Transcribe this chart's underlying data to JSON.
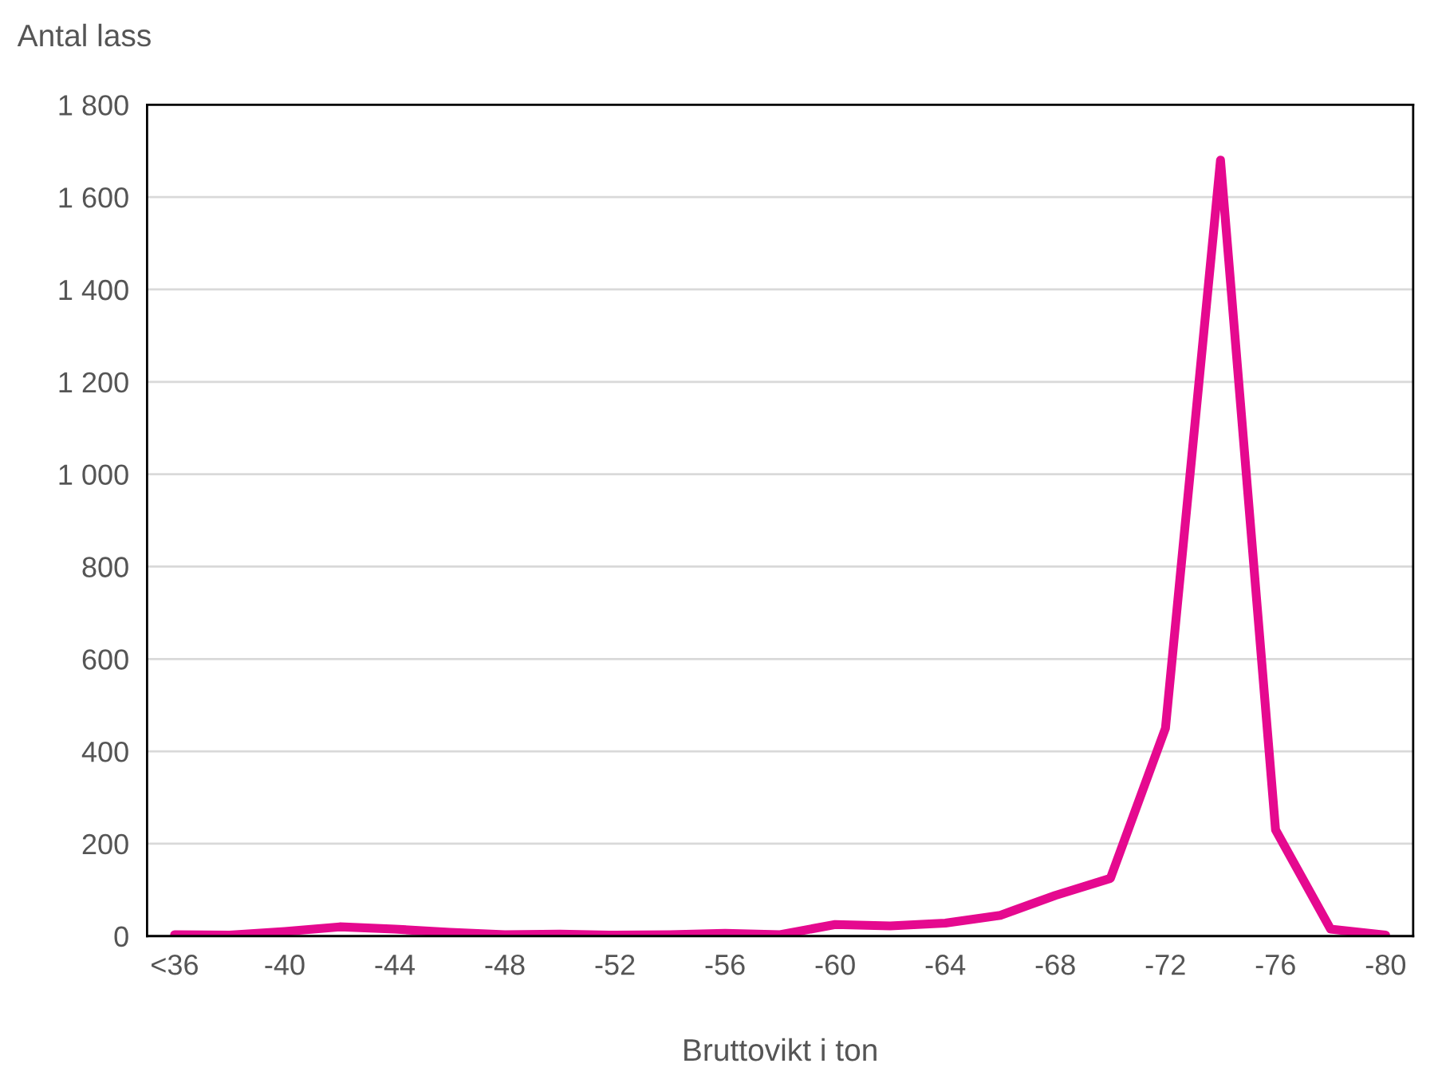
{
  "chart_data": {
    "type": "line",
    "xlabel": "Bruttovikt i ton",
    "ylabel": "Antal lass",
    "categories": [
      "<36",
      null,
      "-40",
      null,
      "-44",
      null,
      "-48",
      null,
      "-52",
      null,
      "-56",
      null,
      "-60",
      null,
      "-64",
      null,
      "-68",
      null,
      "-72",
      null,
      "-76",
      null,
      "-80"
    ],
    "series": [
      {
        "color": "#e5098f",
        "values": [
          3,
          2,
          10,
          20,
          15,
          8,
          3,
          4,
          2,
          3,
          6,
          3,
          25,
          22,
          28,
          45,
          88,
          125,
          450,
          1680,
          230,
          15,
          2
        ]
      }
    ],
    "ylim": [
      0,
      1800
    ],
    "yticks": [
      0,
      200,
      400,
      600,
      800,
      {
        "value": 1000,
        "label": "1 000"
      },
      {
        "value": 1200,
        "label": "1 200"
      },
      {
        "value": 1400,
        "label": "1 400"
      },
      {
        "value": 1600,
        "label": "1 600"
      },
      {
        "value": 1800,
        "label": "1 800"
      }
    ],
    "grid": "y",
    "marker": "none",
    "line_style": "solid"
  }
}
